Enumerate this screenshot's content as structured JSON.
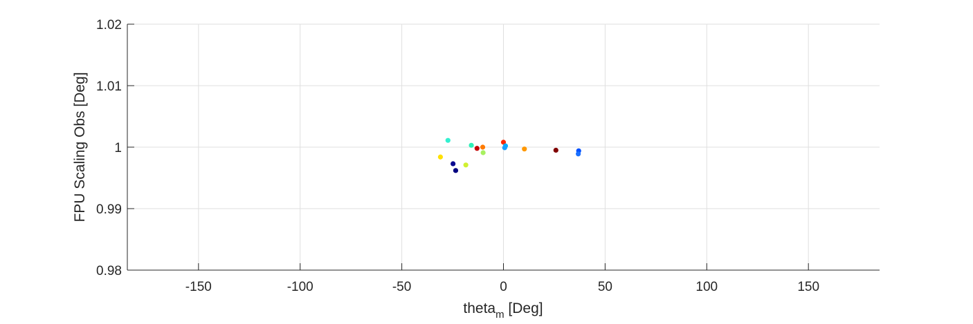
{
  "chart_data": {
    "type": "scatter",
    "xlabel": "theta",
    "xlabel_sub": "m",
    "xlabel_unit": " [Deg]",
    "ylabel": "FPU Scaling Obs [Deg]",
    "xlim": [
      -185,
      185
    ],
    "ylim": [
      0.98,
      1.02
    ],
    "xticks": [
      -150,
      -100,
      -50,
      0,
      50,
      100,
      150
    ],
    "xtick_labels": [
      "-150",
      "-100",
      "-50",
      "0",
      "50",
      "100",
      "150"
    ],
    "yticks": [
      0.98,
      0.99,
      1.0,
      1.01,
      1.02
    ],
    "ytick_labels": [
      "0.98",
      "0.99",
      "1",
      "1.01",
      "1.02"
    ],
    "grid": true,
    "points": [
      {
        "x": -27.3,
        "y": 1.0011,
        "color": "#33f0d0"
      },
      {
        "x": -15.8,
        "y": 1.0003,
        "color": "#2ef0b8"
      },
      {
        "x": -10.2,
        "y": 1.0,
        "color": "#ff7a00"
      },
      {
        "x": -13.0,
        "y": 0.9998,
        "color": "#c40000"
      },
      {
        "x": -10.0,
        "y": 0.9991,
        "color": "#a8f060"
      },
      {
        "x": -31.0,
        "y": 0.9984,
        "color": "#ffe000"
      },
      {
        "x": -24.8,
        "y": 0.9973,
        "color": "#0a0a90"
      },
      {
        "x": -18.5,
        "y": 0.9971,
        "color": "#d0f030"
      },
      {
        "x": -23.5,
        "y": 0.9962,
        "color": "#000080"
      },
      {
        "x": 0.0,
        "y": 1.0008,
        "color": "#ff2800"
      },
      {
        "x": 1.0,
        "y": 1.0002,
        "color": "#00b0ff"
      },
      {
        "x": 0.6,
        "y": 0.9999,
        "color": "#1aa0ff"
      },
      {
        "x": 10.3,
        "y": 0.9997,
        "color": "#ff9800"
      },
      {
        "x": 25.8,
        "y": 0.9995,
        "color": "#800000"
      },
      {
        "x": 37.0,
        "y": 0.9994,
        "color": "#0050ff"
      },
      {
        "x": 36.8,
        "y": 0.9989,
        "color": "#1a70ff"
      }
    ]
  }
}
